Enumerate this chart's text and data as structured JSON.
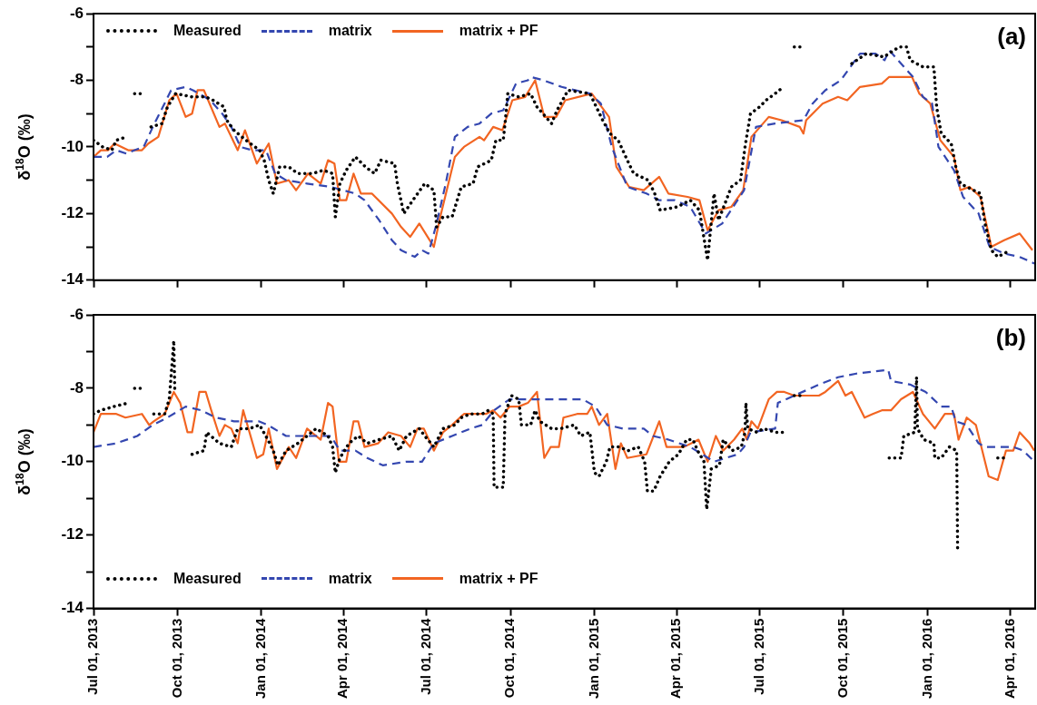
{
  "chart_data": [
    {
      "type": "line",
      "annotations": [
        "(a)"
      ],
      "ylabel": "δ$^{18}$O (‰)",
      "legend": "top left",
      "grid": false,
      "tick_labels": "y",
      "xlim": [
        "2013-07-01",
        "2016-04-28"
      ],
      "ylim": [
        -14,
        -6
      ],
      "yticks": [
        -6,
        {
          "value": -7,
          "label": null
        },
        -8,
        {
          "value": -9,
          "label": null
        },
        -10,
        {
          "value": -11,
          "label": null
        },
        -12,
        {
          "value": -13,
          "label": null
        },
        -14
      ],
      "xticks": [
        {
          "value": "2013-07-01",
          "label": null
        },
        {
          "value": "2013-10-01",
          "label": null
        },
        {
          "value": "2014-01-01",
          "label": null
        },
        {
          "value": "2014-04-01",
          "label": null
        },
        {
          "value": "2014-07-01",
          "label": null
        },
        {
          "value": "2014-10-01",
          "label": null
        },
        {
          "value": "2015-01-01",
          "label": null
        },
        {
          "value": "2015-04-01",
          "label": null
        },
        {
          "value": "2015-07-01",
          "label": null
        },
        {
          "value": "2015-10-01",
          "label": null
        },
        {
          "value": "2016-01-01",
          "label": null
        },
        {
          "value": "2016-04-01",
          "label": null
        }
      ],
      "series": [
        {
          "name": "Measured",
          "color": "#000000",
          "line_style": "dotted",
          "x": [
            "2013-07-01",
            "2013-07-11",
            "2013-07-21",
            "2013-07-26",
            "2013-08-06",
            "2013-08-10",
            "2013-08-15",
            "2013-08-25",
            "2013-08-28",
            "2013-09-02",
            "2013-09-14",
            "2013-09-20",
            "2013-09-29",
            "2013-10-17",
            "2013-11-01",
            "2013-11-09",
            "2013-11-21",
            "2013-11-24",
            "2013-12-02",
            "2013-12-15",
            "2013-12-30",
            "2014-01-04",
            "2014-01-09",
            "2014-01-14",
            "2014-01-21",
            "2014-01-31",
            "2014-02-10",
            "2014-02-26",
            "2014-03-10",
            "2014-03-20",
            "2014-03-23",
            "2014-03-28",
            "2014-04-04",
            "2014-04-14",
            "2014-04-25",
            "2014-05-05",
            "2014-05-12",
            "2014-05-27",
            "2014-05-30",
            "2014-06-06",
            "2014-06-16",
            "2014-06-29",
            "2014-07-09",
            "2014-07-12",
            "2014-07-19",
            "2014-07-29",
            "2014-08-08",
            "2014-08-21",
            "2014-08-26",
            "2014-09-10",
            "2014-09-15",
            "2014-09-23",
            "2014-09-25",
            "2014-09-28",
            "2014-10-10",
            "2014-10-23",
            "2014-10-30",
            "2014-11-15",
            "2014-11-21",
            "2014-12-03",
            "2014-12-27",
            "2015-01-10",
            "2015-01-18",
            "2015-01-27",
            "2015-02-06",
            "2015-02-13",
            "2015-03-01",
            "2015-03-08",
            "2015-03-14",
            "2015-04-02",
            "2015-04-16",
            "2015-04-26",
            "2015-05-05",
            "2015-05-12",
            "2015-05-17",
            "2015-05-31",
            "2015-06-10",
            "2015-06-15",
            "2015-06-21",
            "2015-07-01",
            "2015-07-08",
            "2015-07-18",
            "2015-07-27",
            "2015-07-30",
            "2015-08-08",
            "2015-08-15",
            "2015-08-20",
            "2015-10-10",
            "2015-10-26",
            "2015-11-14",
            "2015-12-01",
            "2015-12-09",
            "2015-12-13",
            "2015-12-27",
            "2016-01-08",
            "2016-01-11",
            "2016-01-16",
            "2016-01-27",
            "2016-02-01",
            "2016-02-06",
            "2016-02-13",
            "2016-02-28",
            "2016-03-04",
            "2016-03-11",
            "2016-03-18",
            "2016-04-01"
          ],
          "values": [
            -9.8,
            -10.0,
            -10.1,
            -9.8,
            -9.7,
            null,
            -8.4,
            -8.4,
            null,
            -9.4,
            -9.3,
            -8.8,
            -8.4,
            -8.5,
            -8.5,
            -8.6,
            -8.8,
            -9.2,
            -9.5,
            -9.8,
            -10.1,
            -10.4,
            -11.0,
            -11.4,
            -10.6,
            -10.6,
            -10.8,
            -10.8,
            -10.7,
            -10.8,
            -12.1,
            -11.1,
            -10.7,
            -10.3,
            -10.6,
            -10.8,
            -10.4,
            -10.5,
            -11.1,
            -12.0,
            -11.6,
            -11.1,
            -11.3,
            -12.4,
            -12.1,
            -12.1,
            -11.2,
            -11.1,
            -10.6,
            -10.4,
            -9.8,
            -9.8,
            -9.3,
            -8.4,
            -8.5,
            -8.4,
            -8.8,
            -9.3,
            -8.9,
            -8.3,
            -8.4,
            -9.2,
            -9.6,
            -9.8,
            -10.4,
            -10.8,
            -11.0,
            -11.4,
            -11.9,
            -11.8,
            -11.6,
            -11.9,
            -13.4,
            -11.4,
            -12.2,
            -11.2,
            -11.0,
            -10.0,
            -9.0,
            -8.8,
            -8.6,
            -8.4,
            -8.2,
            null,
            -7.0,
            -7.0,
            null,
            -7.5,
            -7.2,
            -7.3,
            -7.0,
            -7.0,
            -7.4,
            -7.6,
            -7.6,
            -8.8,
            -9.6,
            -9.9,
            -10.6,
            -11.1,
            -11.2,
            -11.4,
            -12.3,
            -13.1,
            -13.3,
            -13.1
          ]
        },
        {
          "name": "matrix",
          "color": "#3447b0",
          "line_style": "dashed",
          "x": [
            "2013-07-01",
            "2013-07-16",
            "2013-07-26",
            "2013-08-06",
            "2013-08-15",
            "2013-08-25",
            "2013-09-04",
            "2013-09-15",
            "2013-09-24",
            "2013-10-10",
            "2013-10-18",
            "2013-11-06",
            "2013-11-19",
            "2013-11-29",
            "2013-12-09",
            "2013-12-22",
            "2014-01-06",
            "2014-01-16",
            "2014-01-28",
            "2014-02-20",
            "2014-03-18",
            "2014-04-14",
            "2014-04-24",
            "2014-05-10",
            "2014-05-24",
            "2014-06-03",
            "2014-06-18",
            "2014-06-26",
            "2014-07-03",
            "2014-07-12",
            "2014-07-22",
            "2014-08-01",
            "2014-08-15",
            "2014-08-28",
            "2014-09-10",
            "2014-09-23",
            "2014-10-07",
            "2014-10-20",
            "2014-10-23",
            "2014-11-06",
            "2014-11-26",
            "2014-12-27",
            "2015-01-08",
            "2015-01-20",
            "2015-02-06",
            "2015-02-27",
            "2015-03-13",
            "2015-03-30",
            "2015-04-16",
            "2015-05-03",
            "2015-05-21",
            "2015-06-14",
            "2015-06-27",
            "2015-07-18",
            "2015-08-18",
            "2015-08-28",
            "2015-09-11",
            "2015-09-28",
            "2015-10-19",
            "2015-11-05",
            "2015-11-15",
            "2015-11-20",
            "2015-12-16",
            "2015-12-27",
            "2016-01-06",
            "2016-01-13",
            "2016-01-30",
            "2016-02-09",
            "2016-02-26",
            "2016-03-09",
            "2016-03-25",
            "2016-04-11",
            "2016-04-27"
          ],
          "values": [
            -10.3,
            -10.3,
            -10.1,
            -10.2,
            -10.1,
            -10.0,
            -9.4,
            -8.8,
            -8.3,
            -8.2,
            -8.3,
            -8.6,
            -9.0,
            -9.4,
            -10.0,
            -10.1,
            -10.1,
            -10.8,
            -11.0,
            -11.1,
            -11.2,
            -11.4,
            -11.6,
            -12.2,
            -12.8,
            -13.1,
            -13.3,
            -13.1,
            -13.2,
            -12.3,
            -11.1,
            -9.7,
            -9.4,
            -9.3,
            -9.0,
            -8.9,
            -8.1,
            -8.0,
            -7.9,
            -8.0,
            -8.2,
            -8.4,
            -8.7,
            -10.0,
            -11.2,
            -11.4,
            -11.6,
            -11.6,
            -11.8,
            -12.6,
            -12.3,
            -11.3,
            -9.4,
            -9.3,
            -9.2,
            -8.7,
            -8.3,
            -8.0,
            -7.2,
            -7.2,
            -7.4,
            -7.1,
            -7.9,
            -8.5,
            -8.7,
            -10.0,
            -10.7,
            -11.5,
            -12.0,
            -13.0,
            -13.2,
            -13.3,
            -13.5
          ]
        },
        {
          "name": "matrix + PF",
          "color": "#f26522",
          "line_style": "solid",
          "x": [
            "2013-07-01",
            "2013-07-09",
            "2013-07-17",
            "2013-07-24",
            "2013-08-08",
            "2013-08-23",
            "2013-08-30",
            "2013-09-10",
            "2013-09-22",
            "2013-09-30",
            "2013-10-10",
            "2013-10-17",
            "2013-10-23",
            "2013-10-30",
            "2013-11-16",
            "2013-11-22",
            "2013-12-06",
            "2013-12-14",
            "2013-12-27",
            "2014-01-09",
            "2014-01-18",
            "2014-01-31",
            "2014-02-08",
            "2014-02-21",
            "2014-03-07",
            "2014-03-15",
            "2014-03-22",
            "2014-03-28",
            "2014-04-04",
            "2014-04-12",
            "2014-04-20",
            "2014-05-02",
            "2014-05-24",
            "2014-06-03",
            "2014-06-13",
            "2014-06-23",
            "2014-07-09",
            "2014-07-16",
            "2014-08-01",
            "2014-08-11",
            "2014-08-28",
            "2014-09-02",
            "2014-09-12",
            "2014-09-22",
            "2014-10-03",
            "2014-10-17",
            "2014-10-28",
            "2014-11-07",
            "2014-11-20",
            "2014-11-30",
            "2014-12-29",
            "2015-01-17",
            "2015-01-25",
            "2015-02-08",
            "2015-02-24",
            "2015-03-13",
            "2015-03-23",
            "2015-04-13",
            "2015-04-26",
            "2015-05-05",
            "2015-05-17",
            "2015-05-31",
            "2015-06-13",
            "2015-06-22",
            "2015-07-11",
            "2015-07-25",
            "2015-08-14",
            "2015-08-18",
            "2015-08-21",
            "2015-09-08",
            "2015-09-25",
            "2015-10-05",
            "2015-10-19",
            "2015-11-12",
            "2015-11-20",
            "2015-12-15",
            "2015-12-23",
            "2016-01-04",
            "2016-01-15",
            "2016-01-30",
            "2016-02-06",
            "2016-02-16",
            "2016-02-28",
            "2016-03-11",
            "2016-03-25",
            "2016-04-11",
            "2016-04-25"
          ],
          "values": [
            -10.3,
            -10.1,
            -10.1,
            -9.9,
            -10.1,
            -10.1,
            -9.9,
            -9.7,
            -8.6,
            -8.4,
            -9.1,
            -9.0,
            -8.3,
            -8.3,
            -9.4,
            -9.3,
            -10.1,
            -9.5,
            -10.5,
            -9.9,
            -11.1,
            -11.0,
            -11.3,
            -10.8,
            -11.1,
            -10.4,
            -10.5,
            -11.6,
            -11.6,
            -10.8,
            -11.4,
            -11.4,
            -12.0,
            -12.4,
            -12.7,
            -12.3,
            -13.0,
            -12.1,
            -10.3,
            -10.0,
            -9.7,
            -9.8,
            -9.4,
            -9.5,
            -8.6,
            -8.5,
            -8.0,
            -9.1,
            -9.1,
            -8.6,
            -8.4,
            -9.1,
            -10.6,
            -11.2,
            -11.3,
            -10.9,
            -11.4,
            -11.5,
            -11.6,
            -12.5,
            -11.9,
            -11.8,
            -11.3,
            -9.7,
            -9.1,
            -9.2,
            -9.4,
            -9.6,
            -9.2,
            -8.7,
            -8.5,
            -8.6,
            -8.2,
            -8.1,
            -7.9,
            -7.9,
            -8.4,
            -8.7,
            -9.8,
            -10.3,
            -11.3,
            -11.2,
            -11.5,
            -13.0,
            -12.8,
            -12.6,
            -13.1
          ]
        }
      ]
    },
    {
      "type": "line",
      "annotations": [
        "(b)"
      ],
      "ylabel": "δ$^{18}$O (‰)",
      "legend": "bottom left",
      "grid": false,
      "xlim": [
        "2013-07-01",
        "2016-04-28"
      ],
      "ylim": [
        -14,
        -6
      ],
      "yticks": [
        -6,
        {
          "value": -7,
          "label": null
        },
        -8,
        {
          "value": -9,
          "label": null
        },
        -10,
        {
          "value": -11,
          "label": null
        },
        -12,
        {
          "value": -13,
          "label": null
        },
        -14
      ],
      "xticks": [
        {
          "value": "2013-07-01",
          "label": "Jul 01, 2013"
        },
        {
          "value": "2013-10-01",
          "label": "Oct 01, 2013"
        },
        {
          "value": "2014-01-01",
          "label": "Jan 01, 2014"
        },
        {
          "value": "2014-04-01",
          "label": "Apr 01, 2014"
        },
        {
          "value": "2014-07-01",
          "label": "Jul 01, 2014"
        },
        {
          "value": "2014-10-01",
          "label": "Oct 01, 2014"
        },
        {
          "value": "2015-01-01",
          "label": "Jan 01, 2015"
        },
        {
          "value": "2015-04-01",
          "label": "Apr 01, 2015"
        },
        {
          "value": "2015-07-01",
          "label": "Jul 01, 2015"
        },
        {
          "value": "2015-10-01",
          "label": "Oct 01, 2015"
        },
        {
          "value": "2016-01-01",
          "label": "Jan 01, 2016"
        },
        {
          "value": "2016-04-01",
          "label": "Apr 01, 2016"
        }
      ],
      "series": [
        {
          "name": "Measured",
          "color": "#000000",
          "line_style": "dotted",
          "x": [
            "2013-07-01",
            "2013-07-09",
            "2013-07-23",
            "2013-08-08",
            "2013-08-11",
            "2013-08-15",
            "2013-08-23",
            "2013-08-28",
            "2013-09-05",
            "2013-09-17",
            "2013-09-22",
            "2013-09-27",
            "2013-09-28",
            "2013-10-05",
            "2013-10-17",
            "2013-10-30",
            "2013-11-02",
            "2013-11-16",
            "2013-11-29",
            "2013-12-06",
            "2013-12-19",
            "2013-12-30",
            "2014-01-08",
            "2014-01-14",
            "2014-01-19",
            "2014-01-28",
            "2014-02-10",
            "2014-02-20",
            "2014-03-02",
            "2014-03-15",
            "2014-03-20",
            "2014-03-23",
            "2014-03-28",
            "2014-04-07",
            "2014-04-17",
            "2014-04-27",
            "2014-05-10",
            "2014-05-24",
            "2014-06-01",
            "2014-06-09",
            "2014-06-23",
            "2014-06-29",
            "2014-07-09",
            "2014-07-19",
            "2014-08-01",
            "2014-08-08",
            "2014-08-18",
            "2014-08-31",
            "2014-09-07",
            "2014-09-12",
            "2014-09-13",
            "2014-09-23",
            "2014-09-25",
            "2014-10-02",
            "2014-10-10",
            "2014-10-13",
            "2014-10-23",
            "2014-10-28",
            "2014-11-02",
            "2014-11-15",
            "2014-11-25",
            "2014-12-10",
            "2014-12-17",
            "2014-12-27",
            "2015-01-01",
            "2015-01-06",
            "2015-01-14",
            "2015-01-18",
            "2015-01-28",
            "2015-02-07",
            "2015-02-18",
            "2015-02-25",
            "2015-02-28",
            "2015-03-07",
            "2015-03-14",
            "2015-03-24",
            "2015-04-03",
            "2015-04-12",
            "2015-04-19",
            "2015-04-24",
            "2015-05-01",
            "2015-05-04",
            "2015-05-09",
            "2015-05-18",
            "2015-05-22",
            "2015-06-01",
            "2015-06-11",
            "2015-06-15",
            "2015-06-16",
            "2015-06-18",
            "2015-06-28",
            "2015-07-05",
            "2015-07-19",
            "2015-07-28",
            "2015-08-02",
            "2015-08-08",
            "2015-08-16",
            "2015-08-25",
            "2015-11-20",
            "2015-12-03",
            "2015-12-06",
            "2015-12-18",
            "2015-12-20",
            "2015-12-21",
            "2015-12-28",
            "2016-01-08",
            "2016-01-09",
            "2016-01-16",
            "2016-01-25",
            "2016-02-02",
            "2016-02-03",
            "2016-02-10",
            "2016-03-18",
            "2016-03-27"
          ],
          "values": [
            -8.7,
            -8.6,
            -8.5,
            -8.4,
            null,
            -8.0,
            -8.0,
            null,
            -8.7,
            -8.7,
            -8.3,
            -6.7,
            -8.0,
            null,
            -9.8,
            -9.7,
            -9.2,
            -9.5,
            -9.6,
            -9.1,
            -9.1,
            -9.0,
            -9.4,
            -9.7,
            -10.1,
            -9.7,
            -9.5,
            -9.3,
            -9.1,
            -9.3,
            -9.6,
            -10.3,
            -9.9,
            -9.5,
            -9.3,
            -9.5,
            -9.4,
            -9.3,
            -9.7,
            -9.3,
            -9.1,
            -9.3,
            -9.6,
            -9.1,
            -9.0,
            -8.8,
            -8.7,
            -8.7,
            -8.6,
            -8.7,
            -10.7,
            -10.7,
            -8.7,
            -8.2,
            -8.3,
            -9.0,
            -9.0,
            -8.6,
            -8.9,
            -9.1,
            -9.1,
            -9.0,
            -9.3,
            -9.2,
            -10.3,
            -10.4,
            -10.0,
            -9.6,
            -9.6,
            -9.7,
            -9.6,
            -10.0,
            -10.8,
            -10.8,
            -10.4,
            -10.0,
            -9.8,
            -9.4,
            -9.4,
            -9.7,
            -10.0,
            -11.3,
            -10.2,
            -10.1,
            -9.4,
            -9.7,
            -9.6,
            -9.2,
            -8.4,
            -9.1,
            -9.2,
            -9.1,
            -9.2,
            -9.2,
            null,
            -8.2,
            -8.2,
            null,
            -9.9,
            -9.9,
            -9.3,
            -9.2,
            -7.7,
            -9.1,
            -9.4,
            -9.5,
            -9.9,
            -9.9,
            -9.6,
            -9.7,
            -12.4,
            null,
            -9.9,
            -9.9
          ]
        },
        {
          "name": "matrix",
          "color": "#3447b0",
          "line_style": "dashed",
          "x": [
            "2013-07-01",
            "2013-07-26",
            "2013-08-18",
            "2013-09-04",
            "2013-09-20",
            "2013-10-10",
            "2013-10-27",
            "2013-11-12",
            "2013-12-02",
            "2013-12-29",
            "2014-01-08",
            "2014-01-28",
            "2014-02-13",
            "2014-03-18",
            "2014-03-28",
            "2014-04-14",
            "2014-04-27",
            "2014-05-14",
            "2014-06-09",
            "2014-06-26",
            "2014-07-09",
            "2014-07-29",
            "2014-08-18",
            "2014-08-31",
            "2014-09-13",
            "2014-09-30",
            "2014-10-20",
            "2014-11-25",
            "2014-12-19",
            "2015-01-02",
            "2015-01-15",
            "2015-02-01",
            "2015-02-24",
            "2015-03-06",
            "2015-03-23",
            "2015-04-16",
            "2015-05-12",
            "2015-06-07",
            "2015-06-14",
            "2015-06-21",
            "2015-07-18",
            "2015-07-21",
            "2015-08-08",
            "2015-09-04",
            "2015-09-25",
            "2015-10-15",
            "2015-11-19",
            "2015-11-22",
            "2015-12-13",
            "2015-12-30",
            "2016-01-16",
            "2016-01-27",
            "2016-02-01",
            "2016-02-13",
            "2016-02-26",
            "2016-03-04",
            "2016-04-04",
            "2016-04-15",
            "2016-04-27"
          ],
          "values": [
            -9.6,
            -9.5,
            -9.3,
            -9.0,
            -8.8,
            -8.5,
            -8.6,
            -8.8,
            -8.9,
            -8.9,
            -9.0,
            -9.3,
            -9.3,
            -9.3,
            -9.7,
            -9.7,
            -9.9,
            -10.1,
            -10.0,
            -10.0,
            -9.5,
            -9.3,
            -9.1,
            -9.0,
            -8.6,
            -8.3,
            -8.3,
            -8.3,
            -8.3,
            -8.5,
            -9.0,
            -9.1,
            -9.1,
            -9.3,
            -9.4,
            -9.6,
            -10.0,
            -9.8,
            -9.6,
            -9.2,
            -9.1,
            -8.4,
            -8.2,
            -7.9,
            -7.7,
            -7.6,
            -7.5,
            -7.8,
            -7.9,
            -8.1,
            -8.5,
            -8.5,
            -8.9,
            -9.0,
            -9.5,
            -9.6,
            -9.6,
            -9.7,
            -10.0
          ]
        },
        {
          "name": "matrix + PF",
          "color": "#f26522",
          "line_style": "solid",
          "x": [
            "2013-07-01",
            "2013-07-09",
            "2013-07-26",
            "2013-08-05",
            "2013-08-23",
            "2013-08-31",
            "2013-09-05",
            "2013-09-17",
            "2013-09-27",
            "2013-10-04",
            "2013-10-12",
            "2013-10-17",
            "2013-10-25",
            "2013-11-01",
            "2013-11-07",
            "2013-11-16",
            "2013-11-22",
            "2013-11-29",
            "2013-12-06",
            "2013-12-12",
            "2013-12-27",
            "2014-01-03",
            "2014-01-09",
            "2014-01-18",
            "2014-01-31",
            "2014-02-08",
            "2014-02-20",
            "2014-03-07",
            "2014-03-15",
            "2014-03-20",
            "2014-03-27",
            "2014-04-04",
            "2014-04-12",
            "2014-04-17",
            "2014-04-24",
            "2014-05-09",
            "2014-05-20",
            "2014-06-03",
            "2014-06-13",
            "2014-06-21",
            "2014-06-28",
            "2014-07-09",
            "2014-07-19",
            "2014-07-29",
            "2014-08-11",
            "2014-08-25",
            "2014-09-04",
            "2014-09-12",
            "2014-09-20",
            "2014-09-30",
            "2014-10-10",
            "2014-10-20",
            "2014-10-30",
            "2014-11-07",
            "2014-11-14",
            "2014-11-23",
            "2014-11-28",
            "2014-12-13",
            "2014-12-24",
            "2014-12-29",
            "2015-01-06",
            "2015-01-15",
            "2015-01-24",
            "2015-01-30",
            "2015-02-06",
            "2015-02-27",
            "2015-03-13",
            "2015-03-21",
            "2015-04-09",
            "2015-04-25",
            "2015-05-05",
            "2015-05-14",
            "2015-05-22",
            "2015-06-03",
            "2015-06-12",
            "2015-06-17",
            "2015-06-22",
            "2015-06-29",
            "2015-07-11",
            "2015-07-20",
            "2015-07-28",
            "2015-08-08",
            "2015-08-18",
            "2015-09-04",
            "2015-09-11",
            "2015-09-25",
            "2015-10-03",
            "2015-10-10",
            "2015-10-24",
            "2015-11-02",
            "2015-11-12",
            "2015-11-22",
            "2015-12-03",
            "2015-12-16",
            "2015-12-27",
            "2016-01-09",
            "2016-01-20",
            "2016-01-30",
            "2016-02-04",
            "2016-02-13",
            "2016-02-23",
            "2016-03-08",
            "2016-03-18",
            "2016-03-27",
            "2016-04-04",
            "2016-04-11",
            "2016-04-22",
            "2016-04-27"
          ],
          "values": [
            -9.2,
            -8.7,
            -8.7,
            -8.8,
            -8.7,
            -9.0,
            -8.9,
            -8.7,
            -8.1,
            -8.4,
            -9.2,
            -9.2,
            -8.1,
            -8.1,
            -8.6,
            -9.3,
            -9.0,
            -9.1,
            -9.5,
            -8.6,
            -9.9,
            -9.8,
            -9.1,
            -10.2,
            -9.6,
            -9.9,
            -9.1,
            -9.4,
            -8.4,
            -8.5,
            -10.0,
            -10.0,
            -8.9,
            -8.9,
            -9.6,
            -9.5,
            -9.2,
            -9.3,
            -9.6,
            -9.1,
            -9.1,
            -9.7,
            -9.2,
            -9.0,
            -8.7,
            -8.7,
            -8.7,
            -8.6,
            -8.8,
            -8.5,
            -8.5,
            -8.4,
            -8.1,
            -9.9,
            -9.6,
            -9.6,
            -8.8,
            -8.7,
            -8.7,
            -8.5,
            -9.0,
            -8.7,
            -10.2,
            -9.5,
            -9.9,
            -9.8,
            -8.9,
            -9.6,
            -9.6,
            -9.4,
            -10.0,
            -9.3,
            -9.7,
            -9.4,
            -9.1,
            -9.4,
            -8.9,
            -9.1,
            -8.3,
            -8.1,
            -8.1,
            -8.2,
            -8.2,
            -8.2,
            -8.1,
            -7.8,
            -8.2,
            -8.1,
            -8.8,
            -8.7,
            -8.6,
            -8.6,
            -8.3,
            -8.1,
            -8.7,
            -9.1,
            -8.7,
            -8.7,
            -9.4,
            -8.8,
            -9.0,
            -10.4,
            -10.5,
            -9.7,
            -9.7,
            -9.2,
            -9.5,
            -9.7
          ]
        }
      ]
    }
  ]
}
